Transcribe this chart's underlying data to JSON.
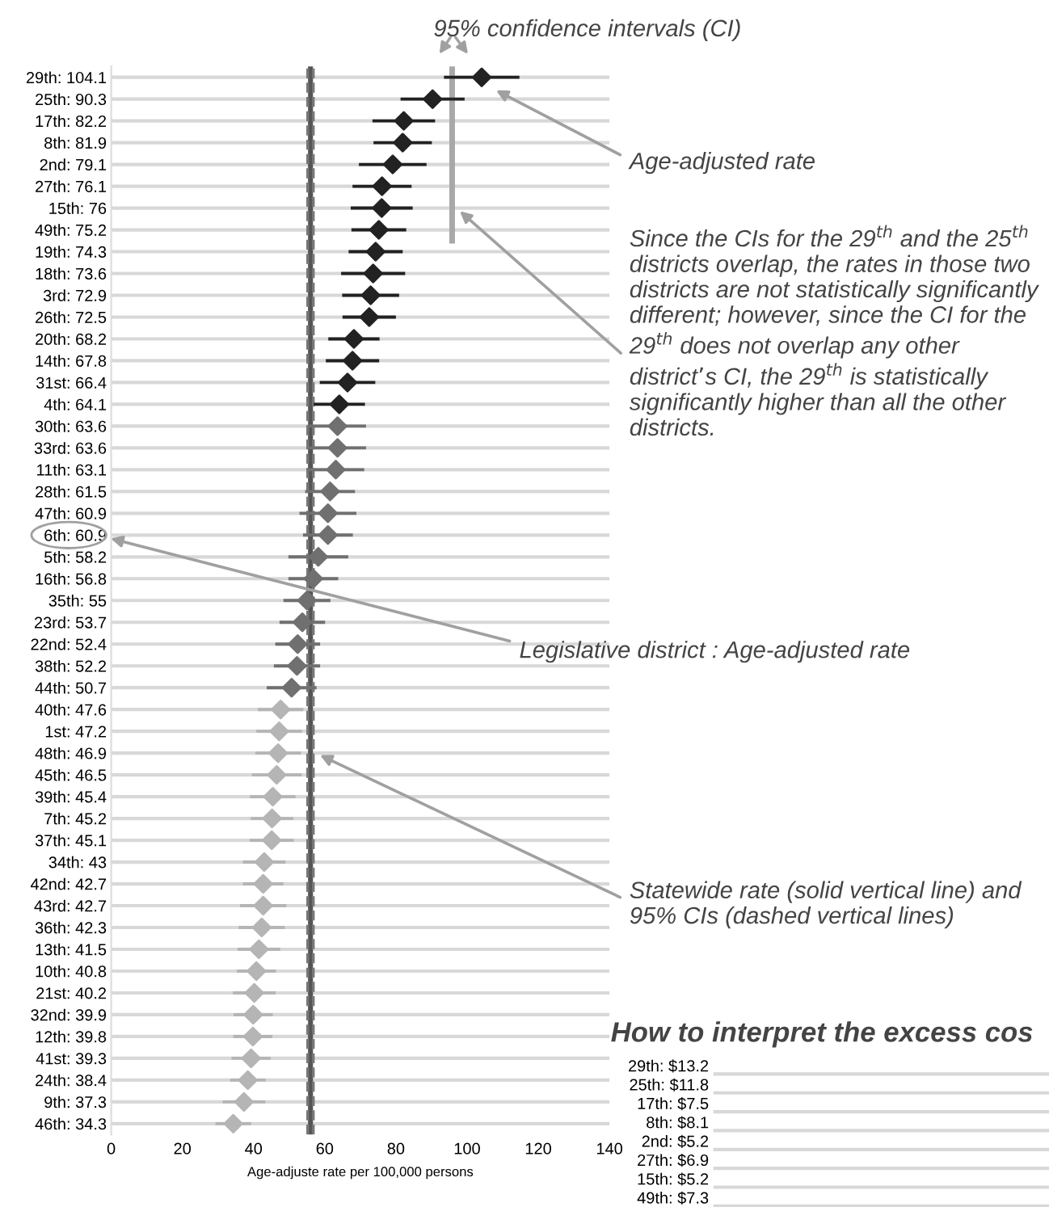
{
  "chart_data": [
    {
      "type": "scatter",
      "orientation": "horizontal",
      "marker": "diamond",
      "grid": "y",
      "legend": false,
      "categories": [
        "29th: 104.1",
        "25th: 90.3",
        "17th: 82.2",
        "8th: 81.9",
        "2nd: 79.1",
        "27th: 76.1",
        "15th: 76",
        "49th: 75.2",
        "19th: 74.3",
        "18th: 73.6",
        "3rd: 72.9",
        "26th: 72.5",
        "20th: 68.2",
        "14th: 67.8",
        "31st: 66.4",
        "4th: 64.1",
        "30th: 63.6",
        "33rd: 63.6",
        "11th: 63.1",
        "28th: 61.5",
        "47th: 60.9",
        "6th: 60.9",
        "5th: 58.2",
        "16th: 56.8",
        "35th: 55",
        "23rd: 53.7",
        "22nd: 52.4",
        "38th: 52.2",
        "44th: 50.7",
        "40th: 47.6",
        "1st: 47.2",
        "48th: 46.9",
        "45th: 46.5",
        "39th: 45.4",
        "7th: 45.2",
        "37th: 45.1",
        "34th: 43",
        "42nd: 42.7",
        "43rd: 42.7",
        "36th: 42.3",
        "13th: 41.5",
        "10th: 40.8",
        "21st: 40.2",
        "32nd: 39.9",
        "12th: 39.8",
        "41st: 39.3",
        "24th: 38.4",
        "9th: 37.3",
        "46th: 34.3"
      ],
      "series": [
        {
          "color": "#222222",
          "values": [
            104.1,
            90.3,
            82.2,
            81.9,
            79.1,
            76.1,
            76,
            75.2,
            74.3,
            73.6,
            72.9,
            72.5,
            68.2,
            67.8,
            66.4,
            64.1,
            null,
            null,
            null,
            null,
            null,
            null,
            null,
            null,
            null,
            null,
            null,
            null,
            null,
            null,
            null,
            null,
            null,
            null,
            null,
            null,
            null,
            null,
            null,
            null,
            null,
            null,
            null,
            null,
            null,
            null,
            null,
            null,
            null
          ],
          "errors": [
            [
              93.5,
              114.7
            ],
            [
              81.3,
              99.3
            ],
            [
              73.4,
              91
            ],
            [
              73.7,
              90.1
            ],
            [
              69.6,
              88.6
            ],
            [
              67.8,
              84.4
            ],
            [
              67.3,
              84.7
            ],
            [
              67.5,
              82.9
            ],
            [
              66.7,
              81.9
            ],
            [
              64.6,
              82.6
            ],
            [
              64.9,
              80.9
            ],
            [
              65,
              80
            ],
            [
              61,
              75.4
            ],
            [
              60.3,
              75.3
            ],
            [
              58.6,
              74.2
            ],
            [
              56.9,
              71.3
            ],
            null,
            null,
            null,
            null,
            null,
            null,
            null,
            null,
            null,
            null,
            null,
            null,
            null,
            null,
            null,
            null,
            null,
            null,
            null,
            null,
            null,
            null,
            null,
            null,
            null,
            null,
            null,
            null,
            null,
            null,
            null,
            null,
            null
          ]
        },
        {
          "color": "#707070",
          "values": [
            null,
            null,
            null,
            null,
            null,
            null,
            null,
            null,
            null,
            null,
            null,
            null,
            null,
            null,
            null,
            null,
            63.6,
            63.6,
            63.1,
            61.5,
            60.9,
            60.9,
            58.2,
            56.8,
            55,
            53.7,
            52.4,
            52.2,
            50.7,
            null,
            null,
            null,
            null,
            null,
            null,
            null,
            null,
            null,
            null,
            null,
            null,
            null,
            null,
            null,
            null,
            null,
            null,
            null,
            null
          ],
          "errors": [
            null,
            null,
            null,
            null,
            null,
            null,
            null,
            null,
            null,
            null,
            null,
            null,
            null,
            null,
            null,
            null,
            [
              55.6,
              71.6
            ],
            [
              55.6,
              71.6
            ],
            [
              55.1,
              71.1
            ],
            [
              54.5,
              68.5
            ],
            [
              52.9,
              68.9
            ],
            [
              53.9,
              67.9
            ],
            [
              49.8,
              66.6
            ],
            [
              49.8,
              63.8
            ],
            [
              48.4,
              61.6
            ],
            [
              47.3,
              60.1
            ],
            [
              46.1,
              58.7
            ],
            [
              45.7,
              58.7
            ],
            [
              43.7,
              57.7
            ],
            null,
            null,
            null,
            null,
            null,
            null,
            null,
            null,
            null,
            null,
            null,
            null,
            null,
            null,
            null,
            null,
            null,
            null,
            null,
            null
          ]
        },
        {
          "color": "#b5b5b5",
          "values": [
            null,
            null,
            null,
            null,
            null,
            null,
            null,
            null,
            null,
            null,
            null,
            null,
            null,
            null,
            null,
            null,
            null,
            null,
            null,
            null,
            null,
            null,
            null,
            null,
            null,
            null,
            null,
            null,
            null,
            47.6,
            47.2,
            46.9,
            46.5,
            45.4,
            45.2,
            45.1,
            43,
            42.7,
            42.7,
            42.3,
            41.5,
            40.8,
            40.2,
            39.9,
            39.8,
            39.3,
            38.4,
            37.3,
            34.3
          ],
          "errors": [
            null,
            null,
            null,
            null,
            null,
            null,
            null,
            null,
            null,
            null,
            null,
            null,
            null,
            null,
            null,
            null,
            null,
            null,
            null,
            null,
            null,
            null,
            null,
            null,
            null,
            null,
            null,
            null,
            null,
            [
              41.2,
              54
            ],
            [
              40.8,
              53.6
            ],
            [
              40.5,
              53.3
            ],
            [
              39.5,
              53.5
            ],
            [
              39,
              51.8
            ],
            [
              39.2,
              51.2
            ],
            [
              38.9,
              51.3
            ],
            [
              37,
              49
            ],
            [
              37,
              48.4
            ],
            [
              36.2,
              49.2
            ],
            [
              35.8,
              48.8
            ],
            [
              35.5,
              47.5
            ],
            [
              35.3,
              46.3
            ],
            [
              34.2,
              46.2
            ],
            [
              34.4,
              45.4
            ],
            [
              34.3,
              45.3
            ],
            [
              33.8,
              44.8
            ],
            [
              33.4,
              43.4
            ],
            [
              31.3,
              43.3
            ],
            [
              29.3,
              39.3
            ]
          ]
        }
      ],
      "xlim": [
        0,
        140
      ],
      "xticks": [
        0,
        20,
        40,
        60,
        80,
        100,
        120,
        140
      ],
      "xlabel": "Age-adjuste rate per 100,000 persons",
      "ref_lines": [
        {
          "axis": "x",
          "value": 56,
          "color": "#555555",
          "line_style": "solid"
        },
        {
          "axis": "x",
          "value": 55.2,
          "color": "#777777",
          "line_style": "dashed"
        },
        {
          "axis": "x",
          "value": 56.8,
          "color": "#777777",
          "line_style": "dashed"
        }
      ],
      "annotations": [
        "95% confidence intervals (CI)",
        "Age-adjusted rate",
        "Since the CIs for the 29$^{th}$ and the 25$^{th}$ districts overlap, the rates in those two districts are not statistically significantly different; however, since the CI for the 29$^{th}$ does not overlap any other district’s CI, the 29$^{th}$ is statistically significantly higher than all the other districts.",
        "Legislative district : Age-adjusted rate",
        "Statewide rate (solid vertical line) and 95% CIs (dashed vertical lines)"
      ]
    },
    {
      "type": "other",
      "title": "How to interpret the excess cos",
      "categories": [
        "29th: $13.2",
        "25th: $11.8",
        "17th: $7.5",
        "8th: $8.1",
        "2nd: $5.2",
        "27th: $6.9",
        "15th: $5.2",
        "49th: $7.3"
      ]
    }
  ]
}
